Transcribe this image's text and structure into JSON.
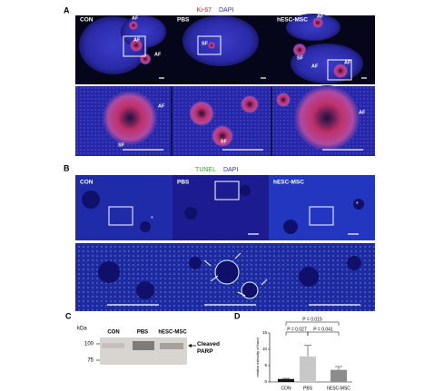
{
  "panel_a": {
    "label": "A",
    "stain": "Ki-67",
    "counterstain": "DAPI",
    "columns": [
      "CON",
      "PBS",
      "hESC-MSC"
    ],
    "annotations": [
      "AF",
      "AF",
      "AF",
      "SF",
      "AF",
      "SF",
      "AF",
      "AF",
      "SF",
      "SF",
      "AF"
    ]
  },
  "panel_b": {
    "label": "B",
    "stain": "TUNEL",
    "counterstain": "DAPI",
    "columns": [
      "CON",
      "PBS",
      "hESC-MSC"
    ],
    "annotations": [
      "*",
      "*"
    ]
  },
  "panel_c": {
    "label": "C",
    "unit": "kDa",
    "markers": [
      "100",
      "75"
    ],
    "lanes": [
      "CON",
      "PBS",
      "hESC-MSC"
    ],
    "band": "Cleaved PARP"
  },
  "panel_d": {
    "label": "D"
  },
  "chart_data": {
    "type": "bar",
    "y_label": "relative intensity of band",
    "categories": [
      "CON",
      "PBS",
      "hESC-MSC"
    ],
    "values": [
      0.9,
      7.8,
      3.7
    ],
    "errors": [
      0.2,
      3.4,
      1.0
    ],
    "colors": [
      "#111111",
      "#c8c8c8",
      "#8c8c8c"
    ],
    "ylim": [
      0,
      15
    ],
    "yticks": [
      0,
      5,
      10,
      15
    ],
    "annotations": [
      "P = 0.015",
      "P = 0.027",
      "P = 0.041"
    ]
  }
}
